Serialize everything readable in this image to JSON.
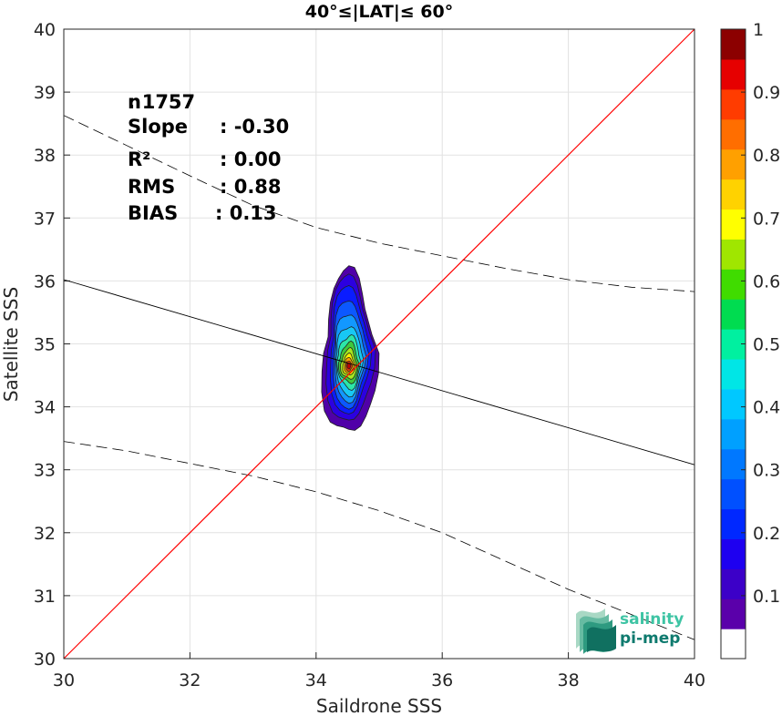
{
  "chart_data": {
    "type": "contour",
    "title": "40°≤|LAT|≤ 60°",
    "xlabel": "Saildrone SSS",
    "ylabel": "Satellite SSS",
    "xlim": [
      30,
      40
    ],
    "ylim": [
      30,
      40
    ],
    "xticks": [
      "30",
      "32",
      "34",
      "36",
      "38",
      "40"
    ],
    "yticks": [
      "30",
      "31",
      "32",
      "33",
      "34",
      "35",
      "36",
      "37",
      "38",
      "39",
      "40"
    ],
    "grid": true,
    "stats": [
      {
        "label": "n",
        "value": ": 1757"
      },
      {
        "label": "Slope",
        "value": ": -0.30"
      },
      {
        "label": "R²",
        "value": ": 0.00"
      },
      {
        "label": "RMS",
        "value": ": 0.88"
      },
      {
        "label": "BIAS",
        "value": ": 0.13"
      }
    ],
    "one_to_one_line": {
      "x": [
        30,
        40
      ],
      "y": [
        30,
        40
      ],
      "color": "#ff0000"
    },
    "regression_line": {
      "x": [
        30,
        40
      ],
      "y": [
        36.02,
        33.08
      ],
      "color": "#000000"
    },
    "upper_bound_line": {
      "x": [
        30,
        31,
        32,
        33,
        34,
        35,
        36,
        37,
        38,
        39,
        40
      ],
      "y": [
        38.63,
        38.15,
        37.67,
        37.2,
        36.85,
        36.6,
        36.4,
        36.2,
        36.02,
        35.9,
        35.83
      ],
      "style": "dashed"
    },
    "lower_bound_line": {
      "x": [
        30,
        31,
        32,
        33,
        34,
        35,
        36,
        37,
        38,
        39,
        40
      ],
      "y": [
        33.45,
        33.3,
        33.1,
        32.9,
        32.65,
        32.35,
        32.0,
        31.55,
        31.1,
        30.7,
        30.3
      ],
      "style": "dashed"
    },
    "density_peak": {
      "x": 34.52,
      "y": 34.65
    },
    "contour_levels": [
      {
        "level": 0.05,
        "color": "#5000a8",
        "cx": 34.52,
        "cy": 34.85,
        "rx": 0.44,
        "ry": 1.3
      },
      {
        "level": 0.1,
        "color": "#2c00e0",
        "cx": 34.52,
        "cy": 34.9,
        "rx": 0.38,
        "ry": 1.16
      },
      {
        "level": 0.15,
        "color": "#0a1cff",
        "cx": 34.52,
        "cy": 34.9,
        "rx": 0.32,
        "ry": 1.02
      },
      {
        "level": 0.2,
        "color": "#0c58ff",
        "cx": 34.52,
        "cy": 34.85,
        "rx": 0.28,
        "ry": 0.86
      },
      {
        "level": 0.25,
        "color": "#1298ff",
        "cx": 34.52,
        "cy": 34.8,
        "rx": 0.25,
        "ry": 0.7
      },
      {
        "level": 0.3,
        "color": "#18c8f4",
        "cx": 34.52,
        "cy": 34.75,
        "rx": 0.22,
        "ry": 0.55
      },
      {
        "level": 0.4,
        "color": "#2ce6a8",
        "cx": 34.52,
        "cy": 34.72,
        "rx": 0.19,
        "ry": 0.42
      },
      {
        "level": 0.5,
        "color": "#3ec83c",
        "cx": 34.52,
        "cy": 34.7,
        "rx": 0.16,
        "ry": 0.32
      },
      {
        "level": 0.55,
        "color": "#a6e81e",
        "cx": 34.52,
        "cy": 34.68,
        "rx": 0.13,
        "ry": 0.24
      },
      {
        "level": 0.65,
        "color": "#f8f000",
        "cx": 34.52,
        "cy": 34.67,
        "rx": 0.1,
        "ry": 0.17
      },
      {
        "level": 0.75,
        "color": "#ffa000",
        "cx": 34.52,
        "cy": 34.66,
        "rx": 0.075,
        "ry": 0.12
      },
      {
        "level": 0.85,
        "color": "#ff3c00",
        "cx": 34.52,
        "cy": 34.65,
        "rx": 0.05,
        "ry": 0.08
      },
      {
        "level": 0.95,
        "color": "#c40000",
        "cx": 34.52,
        "cy": 34.65,
        "rx": 0.03,
        "ry": 0.045
      }
    ],
    "colorbar": {
      "range": [
        0,
        1
      ],
      "ticks": [
        "0.1",
        "0.2",
        "0.3",
        "0.4",
        "0.5",
        "0.6",
        "0.7",
        "0.8",
        "0.9",
        "1"
      ],
      "colors": [
        "#ffffff",
        "#5a00aa",
        "#3c00c8",
        "#1e00f0",
        "#0028ff",
        "#0050ff",
        "#0078ff",
        "#00a0ff",
        "#00c8ff",
        "#00e6e6",
        "#00f0a0",
        "#00dc50",
        "#40dc00",
        "#a0e600",
        "#ffff00",
        "#ffd200",
        "#ffa000",
        "#ff6e00",
        "#ff3c00",
        "#e60000",
        "#8c0000"
      ]
    }
  },
  "logo": {
    "line1": "salinity",
    "line2": "pi-mep"
  }
}
